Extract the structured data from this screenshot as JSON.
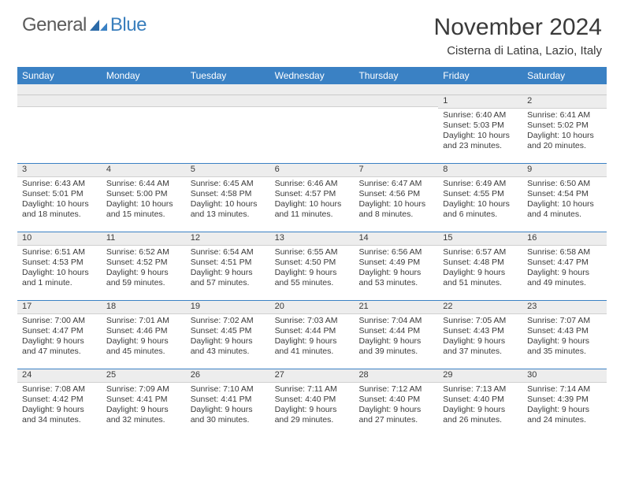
{
  "logo": {
    "general": "General",
    "blue": "Blue"
  },
  "title": "November 2024",
  "location": "Cisterna di Latina, Lazio, Italy",
  "colors": {
    "header_bg": "#3a81c4",
    "daynum_bg": "#ededed",
    "text": "#3a3a3a",
    "logo_gray": "#5b5b5b",
    "logo_blue": "#3a7fbd"
  },
  "day_names": [
    "Sunday",
    "Monday",
    "Tuesday",
    "Wednesday",
    "Thursday",
    "Friday",
    "Saturday"
  ],
  "weeks": [
    [
      null,
      null,
      null,
      null,
      null,
      {
        "n": "1",
        "sr": "Sunrise: 6:40 AM",
        "ss": "Sunset: 5:03 PM",
        "dl": "Daylight: 10 hours and 23 minutes."
      },
      {
        "n": "2",
        "sr": "Sunrise: 6:41 AM",
        "ss": "Sunset: 5:02 PM",
        "dl": "Daylight: 10 hours and 20 minutes."
      }
    ],
    [
      {
        "n": "3",
        "sr": "Sunrise: 6:43 AM",
        "ss": "Sunset: 5:01 PM",
        "dl": "Daylight: 10 hours and 18 minutes."
      },
      {
        "n": "4",
        "sr": "Sunrise: 6:44 AM",
        "ss": "Sunset: 5:00 PM",
        "dl": "Daylight: 10 hours and 15 minutes."
      },
      {
        "n": "5",
        "sr": "Sunrise: 6:45 AM",
        "ss": "Sunset: 4:58 PM",
        "dl": "Daylight: 10 hours and 13 minutes."
      },
      {
        "n": "6",
        "sr": "Sunrise: 6:46 AM",
        "ss": "Sunset: 4:57 PM",
        "dl": "Daylight: 10 hours and 11 minutes."
      },
      {
        "n": "7",
        "sr": "Sunrise: 6:47 AM",
        "ss": "Sunset: 4:56 PM",
        "dl": "Daylight: 10 hours and 8 minutes."
      },
      {
        "n": "8",
        "sr": "Sunrise: 6:49 AM",
        "ss": "Sunset: 4:55 PM",
        "dl": "Daylight: 10 hours and 6 minutes."
      },
      {
        "n": "9",
        "sr": "Sunrise: 6:50 AM",
        "ss": "Sunset: 4:54 PM",
        "dl": "Daylight: 10 hours and 4 minutes."
      }
    ],
    [
      {
        "n": "10",
        "sr": "Sunrise: 6:51 AM",
        "ss": "Sunset: 4:53 PM",
        "dl": "Daylight: 10 hours and 1 minute."
      },
      {
        "n": "11",
        "sr": "Sunrise: 6:52 AM",
        "ss": "Sunset: 4:52 PM",
        "dl": "Daylight: 9 hours and 59 minutes."
      },
      {
        "n": "12",
        "sr": "Sunrise: 6:54 AM",
        "ss": "Sunset: 4:51 PM",
        "dl": "Daylight: 9 hours and 57 minutes."
      },
      {
        "n": "13",
        "sr": "Sunrise: 6:55 AM",
        "ss": "Sunset: 4:50 PM",
        "dl": "Daylight: 9 hours and 55 minutes."
      },
      {
        "n": "14",
        "sr": "Sunrise: 6:56 AM",
        "ss": "Sunset: 4:49 PM",
        "dl": "Daylight: 9 hours and 53 minutes."
      },
      {
        "n": "15",
        "sr": "Sunrise: 6:57 AM",
        "ss": "Sunset: 4:48 PM",
        "dl": "Daylight: 9 hours and 51 minutes."
      },
      {
        "n": "16",
        "sr": "Sunrise: 6:58 AM",
        "ss": "Sunset: 4:47 PM",
        "dl": "Daylight: 9 hours and 49 minutes."
      }
    ],
    [
      {
        "n": "17",
        "sr": "Sunrise: 7:00 AM",
        "ss": "Sunset: 4:47 PM",
        "dl": "Daylight: 9 hours and 47 minutes."
      },
      {
        "n": "18",
        "sr": "Sunrise: 7:01 AM",
        "ss": "Sunset: 4:46 PM",
        "dl": "Daylight: 9 hours and 45 minutes."
      },
      {
        "n": "19",
        "sr": "Sunrise: 7:02 AM",
        "ss": "Sunset: 4:45 PM",
        "dl": "Daylight: 9 hours and 43 minutes."
      },
      {
        "n": "20",
        "sr": "Sunrise: 7:03 AM",
        "ss": "Sunset: 4:44 PM",
        "dl": "Daylight: 9 hours and 41 minutes."
      },
      {
        "n": "21",
        "sr": "Sunrise: 7:04 AM",
        "ss": "Sunset: 4:44 PM",
        "dl": "Daylight: 9 hours and 39 minutes."
      },
      {
        "n": "22",
        "sr": "Sunrise: 7:05 AM",
        "ss": "Sunset: 4:43 PM",
        "dl": "Daylight: 9 hours and 37 minutes."
      },
      {
        "n": "23",
        "sr": "Sunrise: 7:07 AM",
        "ss": "Sunset: 4:43 PM",
        "dl": "Daylight: 9 hours and 35 minutes."
      }
    ],
    [
      {
        "n": "24",
        "sr": "Sunrise: 7:08 AM",
        "ss": "Sunset: 4:42 PM",
        "dl": "Daylight: 9 hours and 34 minutes."
      },
      {
        "n": "25",
        "sr": "Sunrise: 7:09 AM",
        "ss": "Sunset: 4:41 PM",
        "dl": "Daylight: 9 hours and 32 minutes."
      },
      {
        "n": "26",
        "sr": "Sunrise: 7:10 AM",
        "ss": "Sunset: 4:41 PM",
        "dl": "Daylight: 9 hours and 30 minutes."
      },
      {
        "n": "27",
        "sr": "Sunrise: 7:11 AM",
        "ss": "Sunset: 4:40 PM",
        "dl": "Daylight: 9 hours and 29 minutes."
      },
      {
        "n": "28",
        "sr": "Sunrise: 7:12 AM",
        "ss": "Sunset: 4:40 PM",
        "dl": "Daylight: 9 hours and 27 minutes."
      },
      {
        "n": "29",
        "sr": "Sunrise: 7:13 AM",
        "ss": "Sunset: 4:40 PM",
        "dl": "Daylight: 9 hours and 26 minutes."
      },
      {
        "n": "30",
        "sr": "Sunrise: 7:14 AM",
        "ss": "Sunset: 4:39 PM",
        "dl": "Daylight: 9 hours and 24 minutes."
      }
    ]
  ]
}
